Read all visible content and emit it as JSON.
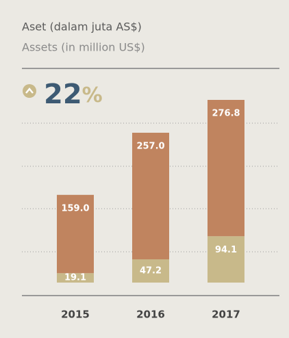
{
  "chart_data": {
    "type": "bar",
    "stacked": true,
    "title": "Aset (dalam juta AS$)",
    "subtitle": "Assets (in million US$)",
    "annotation": "22",
    "annotation_unit": "%",
    "categories": [
      "2015",
      "2016",
      "2017"
    ],
    "series": [
      {
        "color": "#c8b98a",
        "values": [
          19.1,
          47.2,
          94.1
        ]
      },
      {
        "color": "#c0845f",
        "values": [
          159.0,
          257.0,
          276.8
        ],
        "value_labels": [
          "159.0",
          "257.0",
          "276.8"
        ]
      }
    ],
    "value_labels": [
      "19.1",
      "47.2",
      "94.1"
    ]
  }
}
